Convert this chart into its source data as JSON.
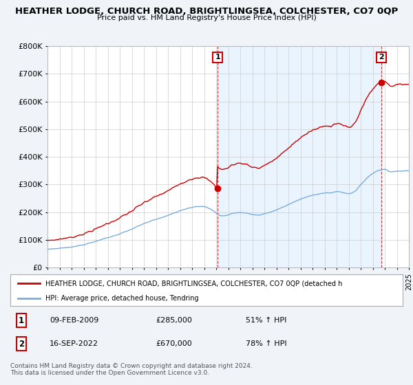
{
  "title": "HEATHER LODGE, CHURCH ROAD, BRIGHTLINGSEA, COLCHESTER, CO7 0QP",
  "subtitle": "Price paid vs. HM Land Registry's House Price Index (HPI)",
  "red_label": "HEATHER LODGE, CHURCH ROAD, BRIGHTLINGSEA, COLCHESTER, CO7 0QP (detached h",
  "blue_label": "HPI: Average price, detached house, Tendring",
  "sale1_date": "09-FEB-2009",
  "sale1_price": "£285,000",
  "sale1_pct": "51% ↑ HPI",
  "sale1_year": 2009.12,
  "sale1_value": 285000,
  "sale2_date": "16-SEP-2022",
  "sale2_price": "£670,000",
  "sale2_pct": "78% ↑ HPI",
  "sale2_year": 2022.71,
  "sale2_value": 670000,
  "footer": "Contains HM Land Registry data © Crown copyright and database right 2024.\nThis data is licensed under the Open Government Licence v3.0.",
  "ylim": [
    0,
    800000
  ],
  "yticks": [
    0,
    100000,
    200000,
    300000,
    400000,
    500000,
    600000,
    700000,
    800000
  ],
  "ytick_labels": [
    "£0",
    "£100K",
    "£200K",
    "£300K",
    "£400K",
    "£500K",
    "£600K",
    "£700K",
    "£800K"
  ],
  "red_color": "#cc0000",
  "blue_color": "#7aacdc",
  "shade_color": "#ddeeff",
  "background_color": "#f0f4f8",
  "plot_bg_color": "#ffffff",
  "grid_color": "#cccccc",
  "annotation_box_color": "#cc0000",
  "xlim_left": 1995.0,
  "xlim_right": 2025.0
}
